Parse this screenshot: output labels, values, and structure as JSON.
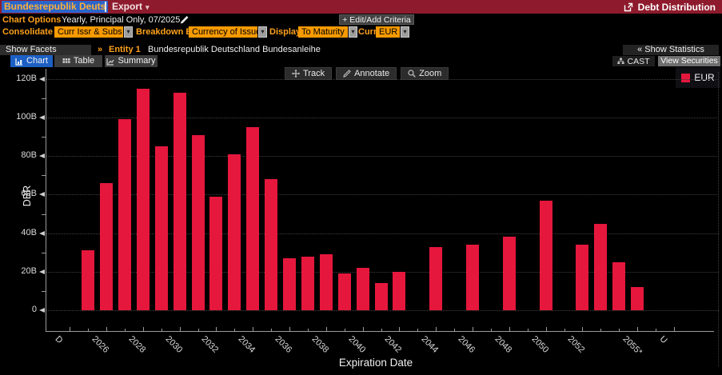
{
  "titlebar": {
    "security_input": "Bundesrepublik Deuts",
    "export_label": "Export",
    "export_caret": "▾",
    "app_title": "Debt Distribution"
  },
  "toolbar": {
    "chart_options_label": "Chart Options",
    "chart_options_value": "Yearly, Principal Only, 07/2025",
    "edit_add_label": "+ Edit/Add Criteria"
  },
  "filters": {
    "consolidate_label": "Consolidate",
    "consolidate_value": "Curr Issr & Subs",
    "breakdown_label": "Breakdown By",
    "breakdown_value": "Currency of Issue",
    "display_label": "Display",
    "display_value": "To Maturity",
    "curr_label": "Curr",
    "curr_value": "EUR",
    "dropdown_caret": "▾"
  },
  "facets": {
    "show_facets_label": "Show Facets",
    "chevron": "»",
    "entity_label": "Entity 1",
    "entity_name": "Bundesrepublik Deutschland Bundesanleihe",
    "show_statistics_label": "« Show Statistics"
  },
  "tabs": {
    "chart": "Chart",
    "table": "Table",
    "summary": "Summary",
    "cast_label": "CAST",
    "view_securities_label": "View Securities"
  },
  "chart_toolbar": {
    "track": "Track",
    "annotate": "Annotate",
    "zoom": "Zoom"
  },
  "colors": {
    "bar_red": "#e6173c",
    "titlebar_red": "#8e1b2d",
    "amber": "#ffa11c",
    "dropdown_orange": "#f79a00",
    "active_tab_blue": "#1c60c4",
    "selection_blue": "#2a65cb"
  },
  "chart_data": {
    "type": "bar",
    "title": "",
    "xlabel": "Expiration Date",
    "ylabel": "DBR",
    "legend": {
      "label": "EUR",
      "color": "#e6173c",
      "position": "top-right"
    },
    "grid": "dotted-horizontal",
    "y_axis": {
      "min": 0,
      "max": 120,
      "step": 20,
      "unit": "B",
      "tick_labels": [
        "0",
        "20B",
        "40B",
        "60B",
        "80B",
        "100B",
        "120B"
      ]
    },
    "x_axis": {
      "year_min": 2024,
      "year_max": 2057,
      "ticks": [
        {
          "label": "D",
          "year": 2024
        },
        {
          "label": "2026",
          "year": 2026
        },
        {
          "label": "2028",
          "year": 2028
        },
        {
          "label": "2030",
          "year": 2030
        },
        {
          "label": "2032",
          "year": 2032
        },
        {
          "label": "2034",
          "year": 2034
        },
        {
          "label": "2036",
          "year": 2036
        },
        {
          "label": "2038",
          "year": 2038
        },
        {
          "label": "2040",
          "year": 2040
        },
        {
          "label": "2042",
          "year": 2042
        },
        {
          "label": "2044",
          "year": 2044
        },
        {
          "label": "2046",
          "year": 2046
        },
        {
          "label": "2048",
          "year": 2048
        },
        {
          "label": "2050",
          "year": 2050
        },
        {
          "label": "2052",
          "year": 2052
        },
        {
          "label": "2055*",
          "year": 2055
        },
        {
          "label": "U",
          "year": 2057
        }
      ]
    },
    "series": [
      {
        "name": "EUR",
        "color": "#e6173c",
        "points": [
          {
            "year": 2025,
            "value_billions": 31
          },
          {
            "year": 2026,
            "value_billions": 66
          },
          {
            "year": 2027,
            "value_billions": 99
          },
          {
            "year": 2028,
            "value_billions": 115
          },
          {
            "year": 2029,
            "value_billions": 85
          },
          {
            "year": 2030,
            "value_billions": 113
          },
          {
            "year": 2031,
            "value_billions": 91
          },
          {
            "year": 2032,
            "value_billions": 59
          },
          {
            "year": 2033,
            "value_billions": 81
          },
          {
            "year": 2034,
            "value_billions": 95
          },
          {
            "year": 2035,
            "value_billions": 68
          },
          {
            "year": 2036,
            "value_billions": 27
          },
          {
            "year": 2037,
            "value_billions": 28
          },
          {
            "year": 2038,
            "value_billions": 29
          },
          {
            "year": 2039,
            "value_billions": 19
          },
          {
            "year": 2040,
            "value_billions": 22
          },
          {
            "year": 2041,
            "value_billions": 14
          },
          {
            "year": 2042,
            "value_billions": 20
          },
          {
            "year": 2044,
            "value_billions": 33
          },
          {
            "year": 2046,
            "value_billions": 34
          },
          {
            "year": 2048,
            "value_billions": 38
          },
          {
            "year": 2050,
            "value_billions": 57
          },
          {
            "year": 2052,
            "value_billions": 34
          },
          {
            "year": 2053,
            "value_billions": 45
          },
          {
            "year": 2054,
            "value_billions": 25
          },
          {
            "year": 2055,
            "value_billions": 12
          }
        ]
      }
    ]
  }
}
